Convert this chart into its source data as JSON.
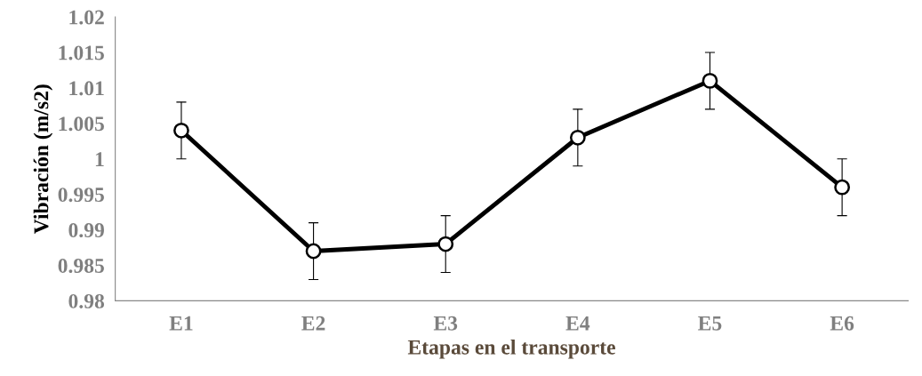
{
  "chart_data": {
    "type": "line",
    "xlabel": "Etapas en el transporte",
    "ylabel": "Vibración (m/s2)",
    "categories": [
      "E1",
      "E2",
      "E3",
      "E4",
      "E5",
      "E6"
    ],
    "series": [
      {
        "color": "#000000",
        "values": [
          1.004,
          0.987,
          0.988,
          1.003,
          1.011,
          0.996
        ],
        "errors": [
          0.004,
          0.004,
          0.004,
          0.004,
          0.004,
          0.004
        ]
      }
    ],
    "ylim": [
      0.98,
      1.02
    ],
    "yticks": [
      0.98,
      0.985,
      0.99,
      0.995,
      1,
      1.005,
      1.01,
      1.015,
      1.02
    ],
    "marker": "circle",
    "line_style": "solid",
    "grid": false,
    "legend": false
  }
}
